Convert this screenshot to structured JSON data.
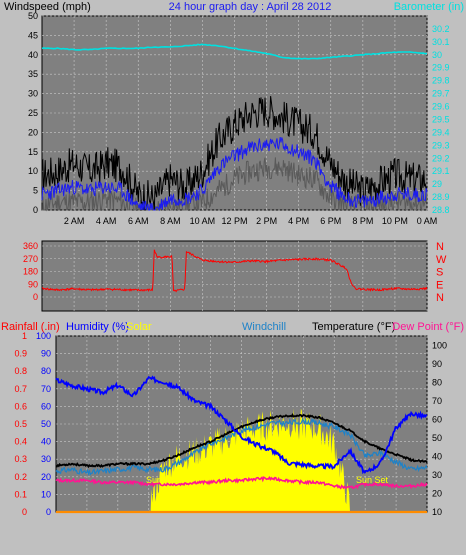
{
  "colors": {
    "background": "#c0c0c0",
    "plot_bg": "#808080",
    "grid": "#c8c8c8",
    "windspeed_gust": "#000000",
    "windspeed_avg": "#1c1cf0",
    "windspeed_low": "#5a5a5a",
    "barometer": "#00e0e0",
    "direction": "#ff0000",
    "direction_axis": "#ff0000",
    "rainfall": "#ff0000",
    "humidity": "#0000ff",
    "solar": "#ffff00",
    "windchill": "#1e82c8",
    "temperature": "#000000",
    "dewpoint": "#ff1493",
    "sun_label": "#ffff00",
    "rain_line": "#ff8c00"
  },
  "chart_data": [
    {
      "type": "line",
      "title": "24 hour graph day : April 28 2012",
      "ylabel": "Windspeed (mph)",
      "y2label": "Barometer (in)",
      "x_ticks": [
        "2 AM",
        "4 AM",
        "6 AM",
        "8 AM",
        "10 AM",
        "12 PM",
        "2 PM",
        "4 PM",
        "6 PM",
        "8 PM",
        "10 PM",
        "0 AM"
      ],
      "ylim": [
        0,
        50
      ],
      "y_ticks": [
        "0",
        "5",
        "10",
        "15",
        "20",
        "25",
        "30",
        "35",
        "40",
        "45",
        "50"
      ],
      "y2lim": [
        28.8,
        30.3
      ],
      "y2_ticks": [
        "28.8",
        "28.9",
        "29",
        "29.1",
        "29.2",
        "29.3",
        "29.4",
        "29.5",
        "29.6",
        "29.7",
        "29.8",
        "29.9",
        "30",
        "30.1",
        "30.2"
      ],
      "grid": true,
      "x_hours": [
        0,
        1,
        2,
        3,
        4,
        5,
        6,
        7,
        8,
        9,
        10,
        11,
        12,
        13,
        14,
        15,
        16,
        17,
        18,
        19,
        20,
        21,
        22,
        23,
        24
      ],
      "series": [
        {
          "key": "gust",
          "axis": "left",
          "values": [
            9,
            10,
            12,
            10,
            12,
            11,
            4,
            3,
            8,
            6,
            10,
            18,
            22,
            25,
            26,
            24,
            22,
            20,
            12,
            7,
            5,
            7,
            9,
            8,
            8
          ]
        },
        {
          "key": "avg",
          "axis": "left",
          "values": [
            4,
            5,
            6,
            5,
            6,
            5,
            1,
            0,
            3,
            3,
            5,
            11,
            14,
            16,
            17,
            17,
            15,
            13,
            6,
            3,
            2,
            3,
            4,
            4,
            4
          ]
        },
        {
          "key": "low",
          "axis": "left",
          "values": [
            1,
            2,
            2,
            2,
            3,
            2,
            0,
            0,
            1,
            1,
            2,
            5,
            8,
            10,
            11,
            11,
            9,
            8,
            3,
            1,
            1,
            1,
            2,
            2,
            2
          ]
        },
        {
          "key": "barometer",
          "axis": "right",
          "values": [
            30.05,
            30.05,
            30.04,
            30.04,
            30.05,
            30.05,
            30.05,
            30.06,
            30.06,
            30.07,
            30.08,
            30.07,
            30.05,
            30.03,
            30.01,
            29.98,
            29.97,
            29.97,
            29.98,
            29.99,
            30.0,
            30.01,
            30.02,
            30.02,
            30.01
          ]
        }
      ]
    },
    {
      "type": "line",
      "ylim": [
        0,
        360
      ],
      "y_ticks": [
        "0",
        "90",
        "180",
        "270",
        "360"
      ],
      "y2_ticks": [
        "N",
        "W",
        "S",
        "E",
        "N"
      ],
      "grid": true,
      "x_hours": [
        0,
        1,
        2,
        3,
        4,
        5,
        6,
        6.9,
        7,
        7.2,
        8.1,
        8.2,
        8.9,
        9.0,
        10,
        11,
        12,
        13,
        14,
        15,
        16,
        17,
        18,
        19,
        19.2,
        19.5,
        20,
        21,
        22,
        23,
        24
      ],
      "series": [
        {
          "key": "direction",
          "values": [
            60,
            50,
            58,
            50,
            55,
            52,
            48,
            50,
            330,
            280,
            285,
            40,
            55,
            320,
            260,
            250,
            245,
            255,
            250,
            260,
            265,
            270,
            260,
            200,
            120,
            60,
            55,
            50,
            60,
            55,
            60
          ]
        }
      ]
    },
    {
      "type": "line",
      "legend": [
        "Rainfall (.in)",
        "Humidity (%)",
        "Solar",
        "Windchill",
        "Temperature (°F)",
        "Dew Point (°F)"
      ],
      "y_left_ticks": [
        "0",
        "0.1",
        "0.2",
        "0.3",
        "0.4",
        "0.5",
        "0.6",
        "0.7",
        "0.8",
        "0.9",
        "1"
      ],
      "y_left2_ticks": [
        "0",
        "10",
        "20",
        "30",
        "40",
        "50",
        "60",
        "70",
        "80",
        "90",
        "100"
      ],
      "y_right_ticks": [
        "10",
        "20",
        "30",
        "40",
        "50",
        "60",
        "70",
        "80",
        "90",
        "100"
      ],
      "ylim_left": [
        0,
        100
      ],
      "ylim_right": [
        10,
        105
      ],
      "annotations": [
        "Sun Rise",
        "Sun Set"
      ],
      "grid": true,
      "x_hours": [
        0,
        1,
        2,
        3,
        4,
        5,
        6,
        7,
        8,
        9,
        10,
        11,
        12,
        13,
        14,
        15,
        16,
        17,
        18,
        19,
        20,
        21,
        22,
        23,
        24
      ],
      "series": [
        {
          "key": "humidity",
          "axis": "left",
          "values": [
            75,
            72,
            70,
            68,
            72,
            66,
            76,
            74,
            70,
            63,
            60,
            52,
            43,
            38,
            35,
            28,
            27,
            26,
            26,
            35,
            22,
            28,
            48,
            56,
            54
          ]
        },
        {
          "key": "temperature",
          "axis": "right",
          "values": [
            35,
            36,
            35,
            35,
            36,
            36,
            36,
            38,
            41,
            45,
            48,
            52,
            56,
            59,
            61,
            62,
            62,
            61,
            58,
            54,
            48,
            44,
            41,
            38,
            37
          ]
        },
        {
          "key": "windchill",
          "axis": "right",
          "values": [
            32,
            33,
            31,
            32,
            33,
            34,
            33,
            33,
            37,
            42,
            47,
            50,
            54,
            56,
            58,
            58,
            59,
            58,
            56,
            52,
            40,
            42,
            37,
            33,
            34
          ]
        },
        {
          "key": "dewpoint",
          "axis": "right",
          "values": [
            27,
            27,
            27,
            26,
            26,
            26,
            25,
            25,
            25,
            26,
            26,
            27,
            27,
            28,
            28,
            27,
            26,
            26,
            24,
            23,
            25,
            25,
            24,
            24,
            25
          ]
        },
        {
          "key": "solar",
          "axis": "left",
          "values": [
            0,
            0,
            0,
            0,
            0,
            0,
            0,
            22,
            28,
            30,
            34,
            38,
            42,
            44,
            46,
            47,
            46,
            44,
            35,
            0,
            0,
            0,
            0,
            0,
            0
          ]
        },
        {
          "key": "rainfall",
          "axis": "left",
          "values": [
            0,
            0,
            0,
            0,
            0,
            0,
            0,
            0,
            0,
            0,
            0,
            0,
            0,
            0,
            0,
            0,
            0,
            0,
            0,
            0,
            0,
            0,
            0,
            0,
            0
          ]
        }
      ]
    }
  ]
}
